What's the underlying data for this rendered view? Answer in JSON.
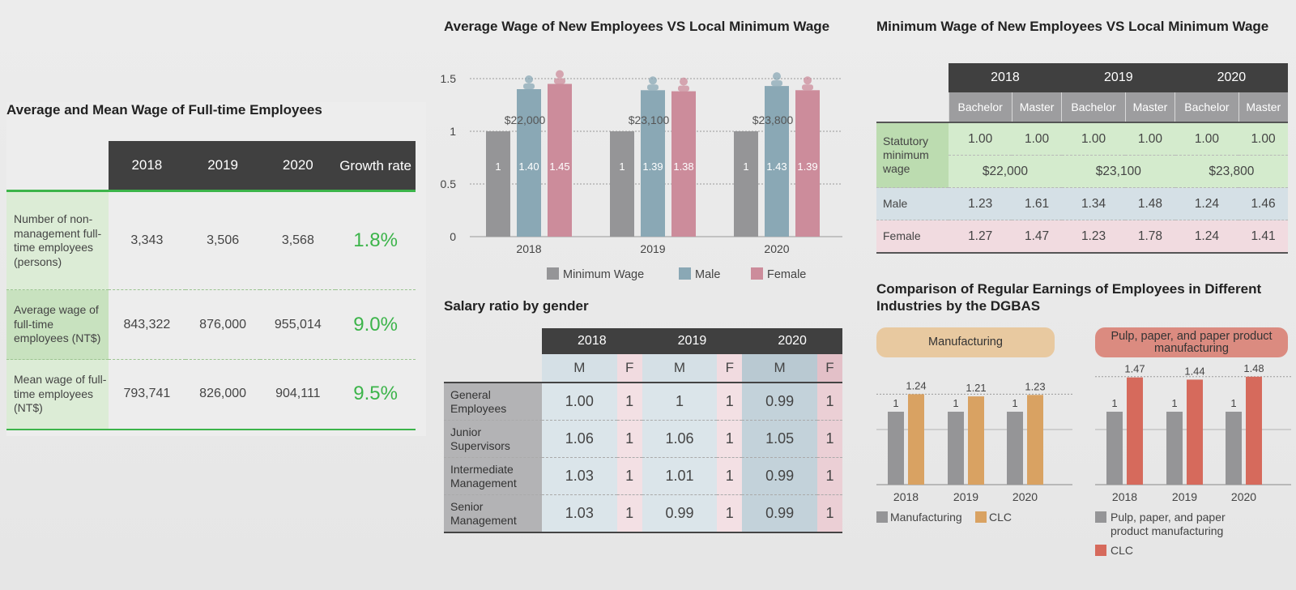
{
  "s1": {
    "title": "Average and Mean Wage of Full-time Employees",
    "headers": [
      "2018",
      "2019",
      "2020",
      "Growth rate"
    ],
    "rows": [
      {
        "label": "Number of non-management full-time employees (persons)",
        "values": [
          "3,343",
          "3,506",
          "3,568"
        ],
        "growth": "1.8%"
      },
      {
        "label": "Average wage of full-time employees (NT$)",
        "values": [
          "843,322",
          "876,000",
          "955,014"
        ],
        "growth": "9.0%"
      },
      {
        "label": "Mean wage of full-time employees (NT$)",
        "values": [
          "793,741",
          "826,000",
          "904,111"
        ],
        "growth": "9.5%"
      }
    ]
  },
  "s3": {
    "title": "Minimum Wage of New Employees VS Local Minimum Wage",
    "years": [
      "2018",
      "2019",
      "2020"
    ],
    "degrees": [
      "Bachelor",
      "Master"
    ],
    "statutory_label": "Statutory minimum wage",
    "statutory_ratios": [
      "1.00",
      "1.00",
      "1.00",
      "1.00",
      "1.00",
      "1.00"
    ],
    "statutory_amounts": [
      "$22,000",
      "$23,100",
      "$23,800"
    ],
    "male_label": "Male",
    "male": [
      "1.23",
      "1.61",
      "1.34",
      "1.48",
      "1.24",
      "1.46"
    ],
    "female_label": "Female",
    "female": [
      "1.27",
      "1.47",
      "1.23",
      "1.78",
      "1.24",
      "1.41"
    ]
  },
  "s2b": {
    "title": "Salary ratio by gender",
    "years": [
      "2018",
      "2019",
      "2020"
    ],
    "m": "M",
    "f": "F",
    "rows": [
      {
        "label": "General Employees",
        "values": [
          "1.00",
          "1",
          "1",
          "1",
          "0.99",
          "1"
        ]
      },
      {
        "label": "Junior Supervisors",
        "values": [
          "1.06",
          "1",
          "1.06",
          "1",
          "1.05",
          "1"
        ]
      },
      {
        "label": "Intermediate Management",
        "values": [
          "1.03",
          "1",
          "1.01",
          "1",
          "0.99",
          "1"
        ]
      },
      {
        "label": "Senior Management",
        "values": [
          "1.03",
          "1",
          "0.99",
          "1",
          "0.99",
          "1"
        ]
      }
    ]
  },
  "s4": {
    "title": "Comparison of Regular Earnings of Employees in Different Industries by the DGBAS",
    "pill_a": "Manufacturing",
    "pill_b": "Pulp, paper, and paper product manufacturing"
  },
  "colors": {
    "minimum": "#959597",
    "male": "#8aa8b5",
    "female": "#cc8c9b",
    "clc_manufacturing": "#d9a262",
    "clc_pulp": "#d66a5c",
    "green": "#3cb44a",
    "pill_a": "#e8c9a0",
    "pill_b": "#db8b80"
  },
  "chart_data": [
    {
      "type": "bar",
      "title": "Average Wage of New Employees VS Local Minimum Wage",
      "categories": [
        "2018",
        "2019",
        "2020"
      ],
      "ylim": [
        0,
        1.5
      ],
      "yticks": [
        "0",
        "0.5",
        "1",
        "1.5"
      ],
      "grid": true,
      "legend": "bottom",
      "series": [
        {
          "name": "Minimum Wage",
          "values": [
            1,
            1,
            1
          ],
          "labels": [
            "1",
            "1",
            "1"
          ]
        },
        {
          "name": "Male",
          "values": [
            1.4,
            1.39,
            1.43
          ],
          "labels": [
            "1.40",
            "1.39",
            "1.43"
          ]
        },
        {
          "name": "Female",
          "values": [
            1.45,
            1.38,
            1.39
          ],
          "labels": [
            "1.45",
            "1.38",
            "1.39"
          ]
        }
      ],
      "annotations": [
        "$22,000",
        "$23,100",
        "$23,800"
      ]
    },
    {
      "type": "bar",
      "title": "",
      "categories": [
        "2018",
        "2019",
        "2020"
      ],
      "legend": "bottom",
      "series": [
        {
          "name": "Manufacturing",
          "values": [
            1,
            1,
            1
          ]
        },
        {
          "name": "CLC",
          "values": [
            1.24,
            1.21,
            1.23
          ]
        }
      ]
    },
    {
      "type": "bar",
      "title": "",
      "categories": [
        "2018",
        "2019",
        "2020"
      ],
      "legend": "bottom",
      "series": [
        {
          "name": "Pulp, paper, and paper product manufacturing",
          "values": [
            1,
            1,
            1
          ]
        },
        {
          "name": "CLC",
          "values": [
            1.47,
            1.44,
            1.48
          ]
        }
      ]
    }
  ]
}
